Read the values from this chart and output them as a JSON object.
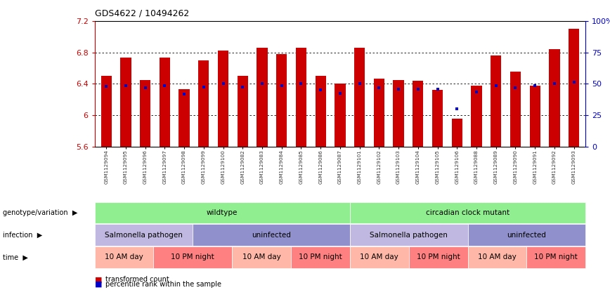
{
  "title": "GDS4622 / 10494262",
  "samples": [
    "GSM1129094",
    "GSM1129095",
    "GSM1129096",
    "GSM1129097",
    "GSM1129098",
    "GSM1129099",
    "GSM1129100",
    "GSM1129082",
    "GSM1129083",
    "GSM1129084",
    "GSM1129085",
    "GSM1129086",
    "GSM1129087",
    "GSM1129101",
    "GSM1129102",
    "GSM1129103",
    "GSM1129104",
    "GSM1129105",
    "GSM1129106",
    "GSM1129088",
    "GSM1129089",
    "GSM1129090",
    "GSM1129091",
    "GSM1129092",
    "GSM1129093"
  ],
  "bar_values": [
    6.5,
    6.73,
    6.45,
    6.73,
    6.33,
    6.7,
    6.82,
    6.5,
    6.86,
    6.78,
    6.86,
    6.5,
    6.4,
    6.86,
    6.47,
    6.45,
    6.44,
    6.32,
    5.96,
    6.38,
    6.76,
    6.56,
    6.38,
    6.84,
    7.1
  ],
  "percentile_values": [
    6.37,
    6.38,
    6.35,
    6.38,
    6.27,
    6.36,
    6.4,
    6.36,
    6.4,
    6.38,
    6.4,
    6.32,
    6.28,
    6.4,
    6.35,
    6.33,
    6.33,
    6.33,
    6.08,
    6.3,
    6.38,
    6.35,
    6.38,
    6.4,
    6.42
  ],
  "ymin": 5.6,
  "ymax": 7.2,
  "bar_color": "#CC0000",
  "percentile_color": "#0000CC",
  "bg_color": "#FFFFFF",
  "axis_tick_color_left": "#CC0000",
  "axis_tick_color_right": "#0000CC",
  "genotype_groups": [
    {
      "label": "wildtype",
      "start": 0,
      "end": 13,
      "color": "#90EE90"
    },
    {
      "label": "circadian clock mutant",
      "start": 13,
      "end": 25,
      "color": "#90EE90"
    }
  ],
  "infection_groups": [
    {
      "label": "Salmonella pathogen",
      "start": 0,
      "end": 5,
      "color": "#C0B8E0"
    },
    {
      "label": "uninfected",
      "start": 5,
      "end": 13,
      "color": "#9090CC"
    },
    {
      "label": "Salmonella pathogen",
      "start": 13,
      "end": 19,
      "color": "#C0B8E0"
    },
    {
      "label": "uninfected",
      "start": 19,
      "end": 25,
      "color": "#9090CC"
    }
  ],
  "time_groups": [
    {
      "label": "10 AM day",
      "start": 0,
      "end": 3,
      "color": "#FFB8A8"
    },
    {
      "label": "10 PM night",
      "start": 3,
      "end": 7,
      "color": "#FF8080"
    },
    {
      "label": "10 AM day",
      "start": 7,
      "end": 10,
      "color": "#FFB8A8"
    },
    {
      "label": "10 PM night",
      "start": 10,
      "end": 13,
      "color": "#FF8080"
    },
    {
      "label": "10 AM day",
      "start": 13,
      "end": 16,
      "color": "#FFB8A8"
    },
    {
      "label": "10 PM night",
      "start": 16,
      "end": 19,
      "color": "#FF8080"
    },
    {
      "label": "10 AM day",
      "start": 19,
      "end": 22,
      "color": "#FFB8A8"
    },
    {
      "label": "10 PM night",
      "start": 22,
      "end": 25,
      "color": "#FF8080"
    }
  ],
  "legend_items": [
    {
      "label": "transformed count",
      "color": "#CC0000"
    },
    {
      "label": "percentile rank within the sample",
      "color": "#0000CC"
    }
  ],
  "row_labels": [
    "genotype/variation",
    "infection",
    "time"
  ]
}
